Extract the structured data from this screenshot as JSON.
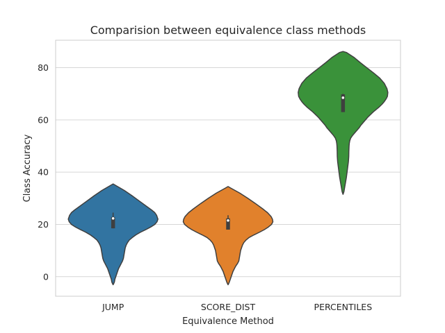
{
  "chart_data": {
    "type": "violin",
    "title": "Comparision between equivalence class methods",
    "xlabel": "Equivalence Method",
    "ylabel": "Class Accuracy",
    "categories": [
      "JUMP",
      "SCORE_DIST",
      "PERCENTILES"
    ],
    "ylim": [
      -7.5,
      90.5
    ],
    "yticks": [
      0,
      20,
      40,
      60,
      80
    ],
    "grid": true,
    "violins": [
      {
        "name": "JUMP",
        "color": "#3274a1",
        "median": 22.3,
        "q1": 18.5,
        "q3": 22.8,
        "whisker_low": 18.5,
        "whisker_high": 24.5,
        "density": [
          [
            35.5,
            0.0
          ],
          [
            35.0,
            0.05
          ],
          [
            33.0,
            0.25
          ],
          [
            31.0,
            0.42
          ],
          [
            29.0,
            0.58
          ],
          [
            27.0,
            0.74
          ],
          [
            25.5,
            0.86
          ],
          [
            24.5,
            0.93
          ],
          [
            23.5,
            0.97
          ],
          [
            22.0,
            1.0
          ],
          [
            21.0,
            0.98
          ],
          [
            20.0,
            0.93
          ],
          [
            19.0,
            0.84
          ],
          [
            18.0,
            0.73
          ],
          [
            17.0,
            0.61
          ],
          [
            16.0,
            0.51
          ],
          [
            15.0,
            0.43
          ],
          [
            14.0,
            0.36
          ],
          [
            13.0,
            0.32
          ],
          [
            12.0,
            0.29
          ],
          [
            11.0,
            0.27
          ],
          [
            10.0,
            0.26
          ],
          [
            9.0,
            0.25
          ],
          [
            8.0,
            0.24
          ],
          [
            7.0,
            0.23
          ],
          [
            6.0,
            0.21
          ],
          [
            5.0,
            0.18
          ],
          [
            4.0,
            0.15
          ],
          [
            3.0,
            0.12
          ],
          [
            2.0,
            0.1
          ],
          [
            1.0,
            0.08
          ],
          [
            0.0,
            0.06
          ],
          [
            -1.0,
            0.04
          ],
          [
            -2.0,
            0.03
          ],
          [
            -2.8,
            0.01
          ],
          [
            -3.1,
            0.0
          ]
        ]
      },
      {
        "name": "SCORE_DIST",
        "color": "#e1812c",
        "median": 21.5,
        "q1": 18.0,
        "q3": 22.3,
        "whisker_low": 18.0,
        "whisker_high": 23.5,
        "density": [
          [
            34.5,
            0.0
          ],
          [
            34.0,
            0.05
          ],
          [
            32.0,
            0.26
          ],
          [
            30.0,
            0.44
          ],
          [
            28.0,
            0.61
          ],
          [
            26.0,
            0.77
          ],
          [
            24.5,
            0.88
          ],
          [
            23.0,
            0.96
          ],
          [
            22.0,
            0.99
          ],
          [
            21.0,
            1.0
          ],
          [
            20.0,
            0.97
          ],
          [
            19.0,
            0.9
          ],
          [
            18.0,
            0.81
          ],
          [
            17.0,
            0.7
          ],
          [
            16.0,
            0.58
          ],
          [
            15.0,
            0.47
          ],
          [
            14.0,
            0.4
          ],
          [
            13.0,
            0.35
          ],
          [
            12.0,
            0.32
          ],
          [
            11.0,
            0.3
          ],
          [
            10.0,
            0.28
          ],
          [
            9.0,
            0.27
          ],
          [
            8.0,
            0.26
          ],
          [
            7.0,
            0.25
          ],
          [
            6.0,
            0.24
          ],
          [
            5.0,
            0.21
          ],
          [
            4.0,
            0.17
          ],
          [
            3.0,
            0.14
          ],
          [
            2.0,
            0.11
          ],
          [
            1.0,
            0.09
          ],
          [
            0.0,
            0.07
          ],
          [
            -1.0,
            0.05
          ],
          [
            -2.0,
            0.03
          ],
          [
            -2.8,
            0.01
          ],
          [
            -3.1,
            0.0
          ]
        ]
      },
      {
        "name": "PERCENTILES",
        "color": "#3a923a",
        "median": 68.5,
        "q1": 63.0,
        "q3": 69.8,
        "whisker_low": 63.0,
        "whisker_high": 70.0,
        "density": [
          [
            86.2,
            0.0
          ],
          [
            85.8,
            0.08
          ],
          [
            84.0,
            0.24
          ],
          [
            82.0,
            0.38
          ],
          [
            80.0,
            0.53
          ],
          [
            78.0,
            0.68
          ],
          [
            76.0,
            0.82
          ],
          [
            74.0,
            0.92
          ],
          [
            72.0,
            0.98
          ],
          [
            70.5,
            1.0
          ],
          [
            69.0,
            0.99
          ],
          [
            68.0,
            0.96
          ],
          [
            67.0,
            0.92
          ],
          [
            66.0,
            0.87
          ],
          [
            65.0,
            0.81
          ],
          [
            64.0,
            0.74
          ],
          [
            63.0,
            0.67
          ],
          [
            62.0,
            0.61
          ],
          [
            61.0,
            0.55
          ],
          [
            60.0,
            0.5
          ],
          [
            59.0,
            0.45
          ],
          [
            58.0,
            0.4
          ],
          [
            57.0,
            0.36
          ],
          [
            56.0,
            0.31
          ],
          [
            55.0,
            0.26
          ],
          [
            54.0,
            0.21
          ],
          [
            53.0,
            0.17
          ],
          [
            52.0,
            0.15
          ],
          [
            51.0,
            0.14
          ],
          [
            50.0,
            0.135
          ],
          [
            48.0,
            0.13
          ],
          [
            46.0,
            0.128
          ],
          [
            44.0,
            0.12
          ],
          [
            42.0,
            0.105
          ],
          [
            40.0,
            0.09
          ],
          [
            38.0,
            0.075
          ],
          [
            36.0,
            0.055
          ],
          [
            34.0,
            0.035
          ],
          [
            32.5,
            0.02
          ],
          [
            31.5,
            0.0
          ]
        ]
      }
    ]
  }
}
